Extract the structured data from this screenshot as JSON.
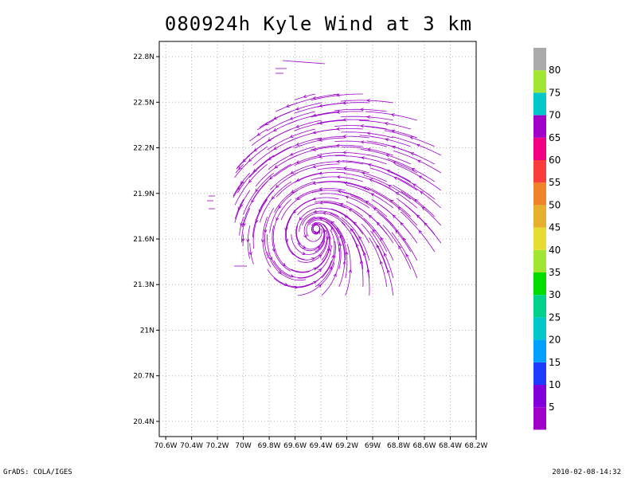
{
  "chart_data": {
    "type": "streamline",
    "title": "080924h Kyle Wind at 3 km",
    "x_axis": {
      "range": [
        -70.65,
        -68.2
      ],
      "tick_values": [
        -70.6,
        -70.4,
        -70.2,
        -70.0,
        -69.8,
        -69.6,
        -69.4,
        -69.2,
        -69.0,
        -68.8,
        -68.6,
        -68.4,
        -68.2
      ],
      "tick_labels": [
        "70.6W",
        "70.4W",
        "70.2W",
        "70W",
        "69.8W",
        "69.6W",
        "69.4W",
        "69.2W",
        "69W",
        "68.8W",
        "68.6W",
        "68.4W",
        "68.2W"
      ]
    },
    "y_axis": {
      "range": [
        20.3,
        22.9
      ],
      "tick_values": [
        20.4,
        20.7,
        21.0,
        21.3,
        21.6,
        21.9,
        22.2,
        22.5,
        22.8
      ],
      "tick_labels": [
        "20.4N",
        "20.7N",
        "21N",
        "21.3N",
        "21.6N",
        "21.9N",
        "22.2N",
        "22.5N",
        "22.8N"
      ]
    },
    "grid": true,
    "storm_center": {
      "lon": -69.43,
      "lat": 21.68
    },
    "line_color": "#9b00c8",
    "colorbar": {
      "labels": [
        "5",
        "10",
        "15",
        "20",
        "25",
        "30",
        "35",
        "40",
        "45",
        "50",
        "55",
        "60",
        "65",
        "70",
        "75",
        "80"
      ],
      "colors": [
        "#a000c8",
        "#8200dc",
        "#1e3cff",
        "#00a0ff",
        "#00c8c8",
        "#00d28c",
        "#00dc00",
        "#a0e632",
        "#e6dc32",
        "#e6af2d",
        "#f08228",
        "#fa3c3c",
        "#f00082",
        "#a000c8",
        "#00c8c8",
        "#a0e632",
        "#aaaaaa"
      ]
    }
  },
  "footer": {
    "left": "GrADS: COLA/IGES",
    "right": "2010-02-08-14:32"
  }
}
